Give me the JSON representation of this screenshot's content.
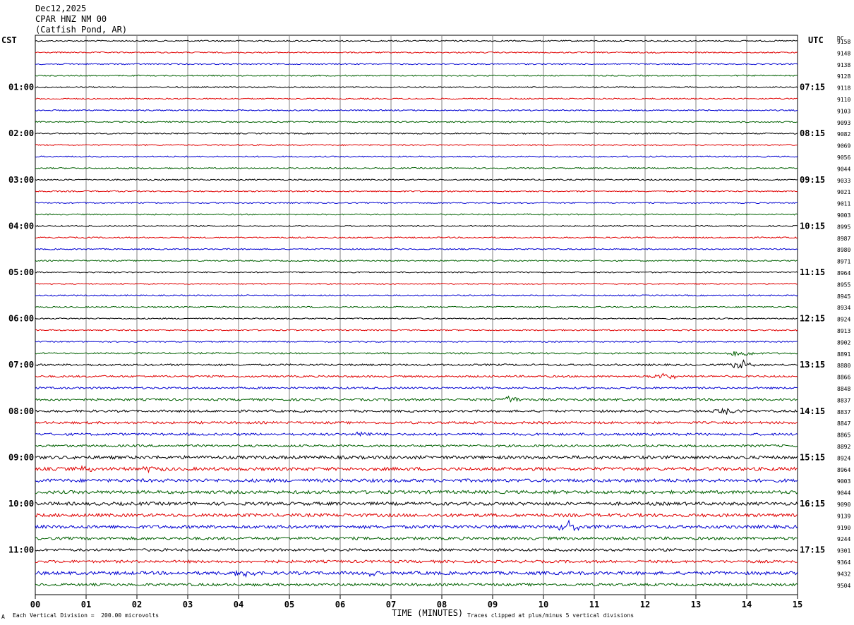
{
  "header": {
    "date": "Dec12,2025",
    "station": "CPAR HNZ NM 00",
    "location": "(Catfish Pond, AR)"
  },
  "left_tz": "CST",
  "right_tz": "UTC",
  "dc_label": "DC",
  "footer": {
    "scale": "Each Vertical Division =  200.00 microvolts",
    "clip": "Traces clipped at plus/minus 5 vertical divisions",
    "corner_mark": "A"
  },
  "colors": {
    "trace": [
      "#000000",
      "#e00000",
      "#0000d0",
      "#006000"
    ],
    "grid": "#808080"
  },
  "chart_data": {
    "type": "line",
    "title": "",
    "xlabel": "TIME (MINUTES)",
    "ylabel": "",
    "xlim": [
      0,
      15
    ],
    "x_ticks": [
      "00",
      "01",
      "02",
      "03",
      "04",
      "05",
      "06",
      "07",
      "08",
      "09",
      "10",
      "11",
      "12",
      "13",
      "14",
      "15"
    ],
    "left_labels": [
      {
        "row": 4,
        "text": "01:00"
      },
      {
        "row": 8,
        "text": "02:00"
      },
      {
        "row": 12,
        "text": "03:00"
      },
      {
        "row": 16,
        "text": "04:00"
      },
      {
        "row": 20,
        "text": "05:00"
      },
      {
        "row": 24,
        "text": "06:00"
      },
      {
        "row": 28,
        "text": "07:00"
      },
      {
        "row": 32,
        "text": "08:00"
      },
      {
        "row": 36,
        "text": "09:00"
      },
      {
        "row": 40,
        "text": "10:00"
      },
      {
        "row": 44,
        "text": "11:00"
      }
    ],
    "right_labels": [
      {
        "row": 4,
        "text": "07:15"
      },
      {
        "row": 8,
        "text": "08:15"
      },
      {
        "row": 12,
        "text": "09:15"
      },
      {
        "row": 16,
        "text": "10:15"
      },
      {
        "row": 20,
        "text": "11:15"
      },
      {
        "row": 24,
        "text": "12:15"
      },
      {
        "row": 28,
        "text": "13:15"
      },
      {
        "row": 32,
        "text": "14:15"
      },
      {
        "row": 36,
        "text": "15:15"
      },
      {
        "row": 40,
        "text": "16:15"
      },
      {
        "row": 44,
        "text": "17:15"
      }
    ],
    "dc_offsets": [
      "9158",
      "9148",
      "9138",
      "9128",
      "9118",
      "9110",
      "9103",
      "9093",
      "9082",
      "9069",
      "9056",
      "9044",
      "9033",
      "9021",
      "9011",
      "9003",
      "8995",
      "8987",
      "8980",
      "8971",
      "8964",
      "8955",
      "8945",
      "8934",
      "8924",
      "8913",
      "8902",
      "8891",
      "8880",
      "8866",
      "8848",
      "8837",
      "8837",
      "8847",
      "8865",
      "8892",
      "8924",
      "8964",
      "9003",
      "9044",
      "9090",
      "9139",
      "9190",
      "9244",
      "9301",
      "9364",
      "9432",
      "9504"
    ],
    "noise_level": [
      1,
      1,
      1,
      1,
      1,
      1,
      1,
      1,
      1,
      1,
      1,
      1,
      1,
      1,
      1,
      1,
      1,
      1,
      1,
      1,
      1,
      1,
      1,
      1,
      1,
      1,
      1,
      1.2,
      1.5,
      1.5,
      1.5,
      1.8,
      1.8,
      1.8,
      1.8,
      1.8,
      2.5,
      2.5,
      2.5,
      2.5,
      2.5,
      2.5,
      2.5,
      2.2,
      2,
      2,
      2.5,
      2
    ],
    "events": [
      {
        "row": 27,
        "minute": 13.9,
        "amp": 6
      },
      {
        "row": 28,
        "minute": 13.9,
        "amp": 7
      },
      {
        "row": 29,
        "minute": 12.4,
        "amp": 5
      },
      {
        "row": 31,
        "minute": 9.3,
        "amp": 5
      },
      {
        "row": 32,
        "minute": 13.6,
        "amp": 4
      },
      {
        "row": 34,
        "minute": 6.5,
        "amp": 4
      },
      {
        "row": 37,
        "minute": 1.0,
        "amp": 4
      },
      {
        "row": 37,
        "minute": 2.3,
        "amp": 4
      },
      {
        "row": 42,
        "minute": 10.5,
        "amp": 8
      },
      {
        "row": 46,
        "minute": 4.1,
        "amp": 6
      },
      {
        "row": 46,
        "minute": 6.7,
        "amp": 6
      }
    ]
  }
}
